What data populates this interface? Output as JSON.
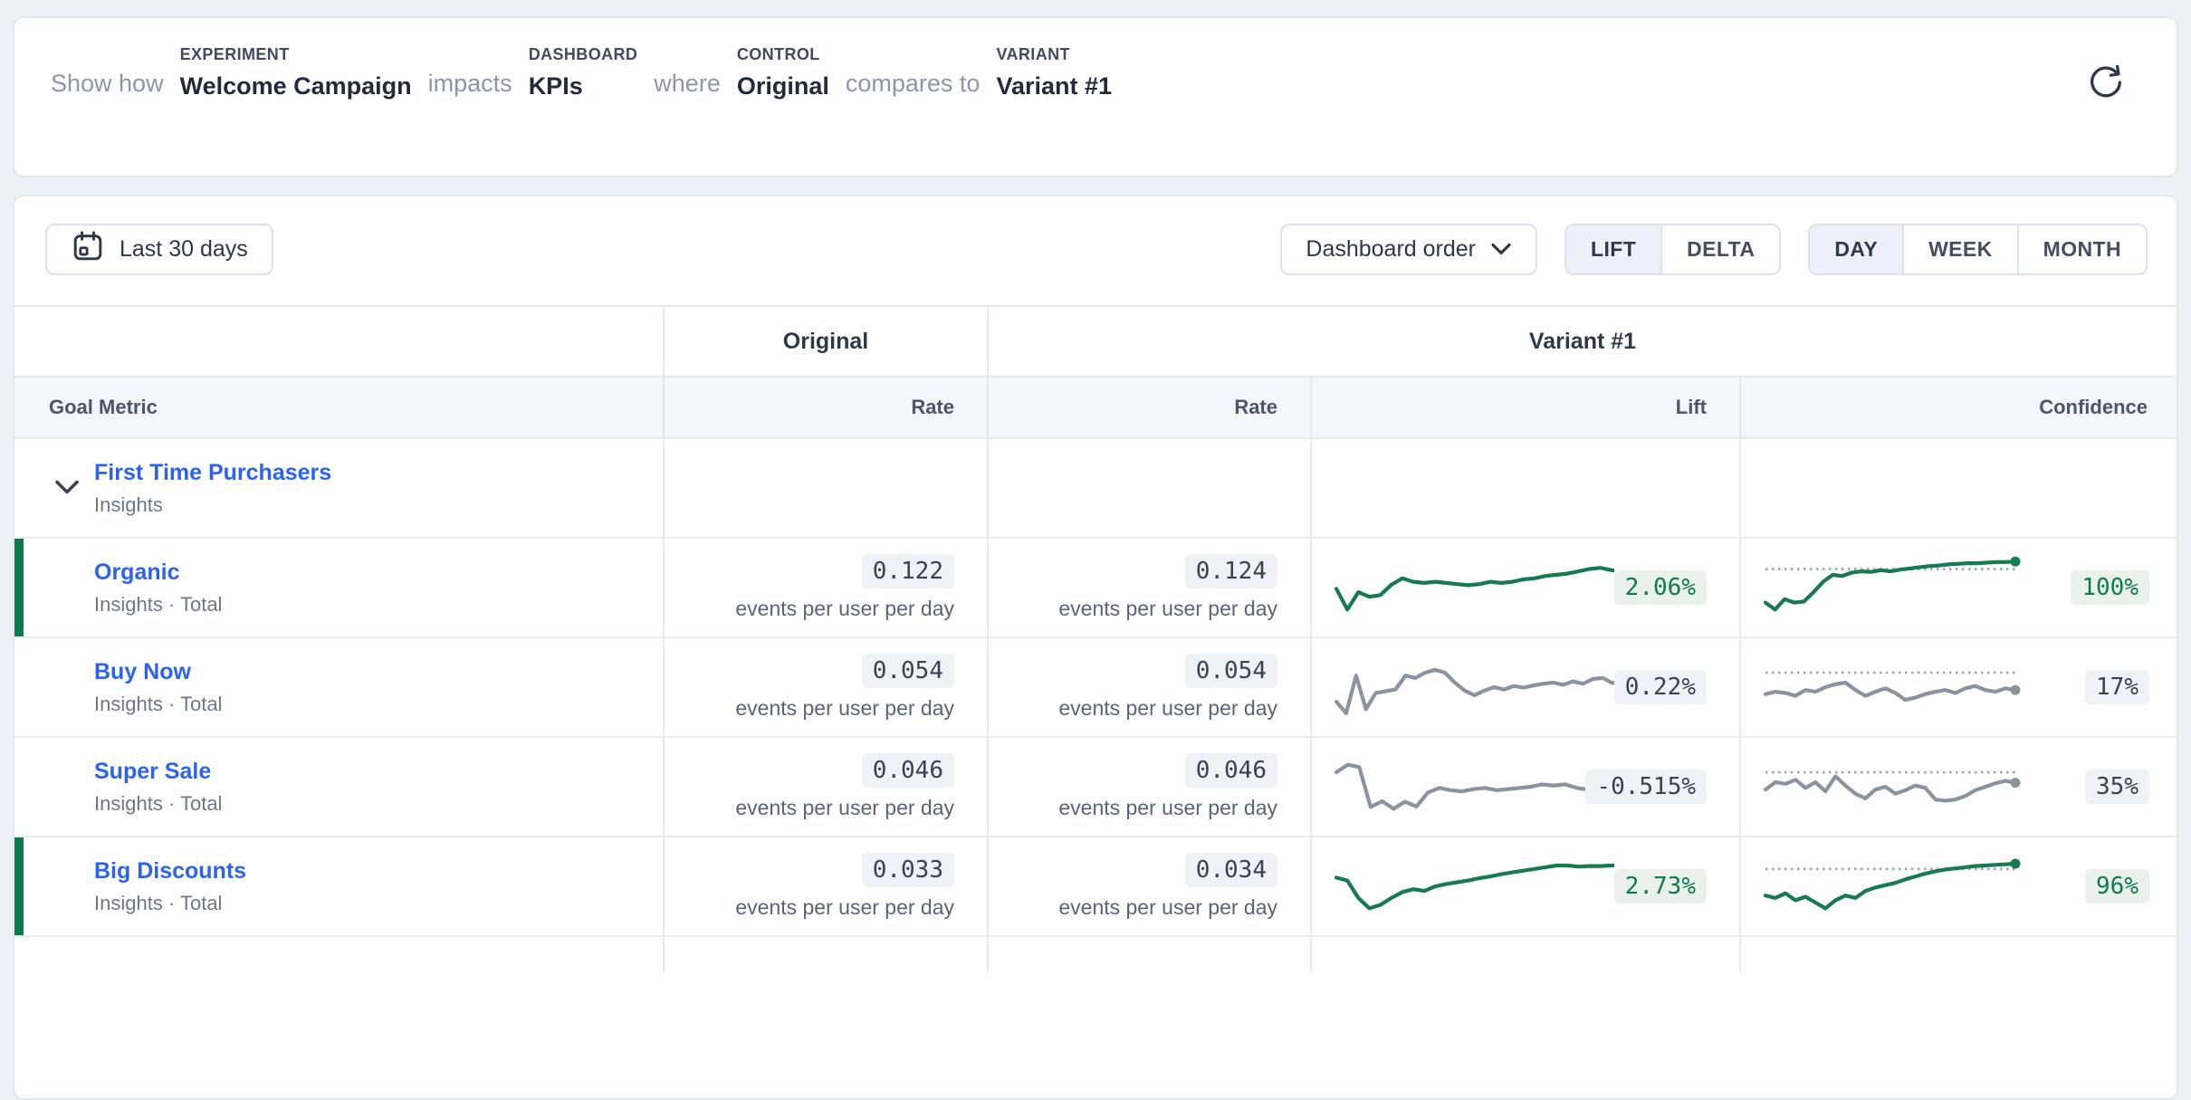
{
  "colors": {
    "positive_green": "#177a52",
    "neutral_gray": "#8b93a1",
    "threshold_gray": "#9aa2b0",
    "accent_blue": "#2b63f0"
  },
  "query_header": {
    "parts": [
      {
        "type": "connector",
        "text": "Show how"
      },
      {
        "type": "term",
        "label": "EXPERIMENT",
        "value": "Welcome Campaign"
      },
      {
        "type": "connector",
        "text": "impacts"
      },
      {
        "type": "term",
        "label": "DASHBOARD",
        "value": "KPIs"
      },
      {
        "type": "connector",
        "text": "where"
      },
      {
        "type": "term",
        "label": "CONTROL",
        "value": "Original"
      },
      {
        "type": "connector",
        "text": "compares to"
      },
      {
        "type": "term",
        "label": "VARIANT",
        "value": "Variant #1"
      }
    ]
  },
  "toolbar": {
    "date_range_label": "Last 30 days",
    "order_label": "Dashboard order",
    "mode_toggle": {
      "options": [
        "LIFT",
        "DELTA"
      ],
      "selected": "LIFT"
    },
    "granularity_toggle": {
      "options": [
        "DAY",
        "WEEK",
        "MONTH"
      ],
      "selected": "DAY"
    }
  },
  "table": {
    "group_headers": {
      "control": "Original",
      "variant": "Variant #1"
    },
    "column_headers": {
      "goal_metric": "Goal Metric",
      "control_rate": "Rate",
      "variant_rate": "Rate",
      "lift": "Lift",
      "confidence": "Confidence"
    },
    "rows": [
      {
        "type": "group",
        "name": "First Time Purchasers",
        "subtitle": "Insights",
        "expanded": true
      },
      {
        "type": "metric",
        "name": "Organic",
        "subtitle": "Insights · Total",
        "significant": true,
        "tone": "positive",
        "control_rate": "0.122",
        "variant_rate": "0.124",
        "unit": "events per user per day",
        "lift": {
          "value": "2.06%",
          "spark": [
            52,
            88,
            58,
            66,
            63,
            45,
            34,
            40,
            42,
            40,
            42,
            44,
            46,
            44,
            40,
            42,
            40,
            36,
            34,
            30,
            28,
            26,
            22,
            18,
            16,
            20,
            22
          ]
        },
        "confidence": {
          "value": "100%",
          "threshold": 0.18,
          "spark": [
            76,
            88,
            70,
            76,
            74,
            58,
            40,
            28,
            30,
            24,
            22,
            23,
            20,
            22,
            19,
            17,
            15,
            13,
            12,
            10,
            9,
            8,
            8,
            7,
            6,
            6,
            5
          ]
        }
      },
      {
        "type": "metric",
        "name": "Buy Now",
        "subtitle": "Insights · Total",
        "significant": false,
        "tone": "neutral",
        "control_rate": "0.054",
        "variant_rate": "0.054",
        "unit": "events per user per day",
        "lift": {
          "value": "0.22%",
          "spark": [
            75,
            95,
            30,
            88,
            60,
            57,
            54,
            30,
            34,
            25,
            20,
            25,
            42,
            56,
            64,
            56,
            50,
            54,
            48,
            51,
            47,
            44,
            42,
            46,
            40,
            44,
            36,
            34,
            43,
            40
          ]
        },
        "confidence": {
          "value": "17%",
          "threshold": 0.25,
          "spark": [
            62,
            58,
            60,
            65,
            55,
            58,
            50,
            45,
            42,
            55,
            65,
            58,
            52,
            60,
            72,
            68,
            62,
            58,
            55,
            60,
            52,
            48,
            55,
            58,
            52,
            55
          ]
        }
      },
      {
        "type": "metric",
        "name": "Super Sale",
        "subtitle": "Insights · Total",
        "significant": false,
        "tone": "neutral",
        "control_rate": "0.046",
        "variant_rate": "0.046",
        "unit": "events per user per day",
        "lift": {
          "value": "-0.515%",
          "spark": [
            25,
            12,
            16,
            85,
            75,
            88,
            76,
            84,
            60,
            52,
            56,
            58,
            54,
            52,
            56,
            54,
            52,
            50,
            46,
            48,
            46,
            52,
            55,
            58,
            60,
            58
          ]
        },
        "confidence": {
          "value": "35%",
          "threshold": 0.25,
          "spark": [
            55,
            42,
            45,
            38,
            52,
            42,
            58,
            32,
            48,
            62,
            70,
            55,
            50,
            62,
            56,
            48,
            52,
            72,
            74,
            72,
            66,
            56,
            50,
            44,
            40,
            43
          ]
        }
      },
      {
        "type": "metric",
        "name": "Big Discounts",
        "subtitle": "Insights · Total",
        "significant": true,
        "tone": "positive",
        "control_rate": "0.033",
        "variant_rate": "0.034",
        "unit": "events per user per day",
        "lift": {
          "value": "2.73%",
          "spark": [
            35,
            40,
            70,
            88,
            82,
            70,
            60,
            55,
            58,
            50,
            46,
            43,
            40,
            36,
            33,
            29,
            26,
            23,
            20,
            17,
            14,
            14,
            16,
            15,
            15,
            14,
            14
          ]
        },
        "confidence": {
          "value": "96%",
          "threshold": 0.2,
          "spark": [
            66,
            70,
            62,
            74,
            68,
            78,
            88,
            74,
            66,
            70,
            58,
            52,
            48,
            44,
            38,
            33,
            28,
            24,
            21,
            19,
            17,
            15,
            14,
            13,
            12,
            11
          ]
        }
      }
    ]
  }
}
